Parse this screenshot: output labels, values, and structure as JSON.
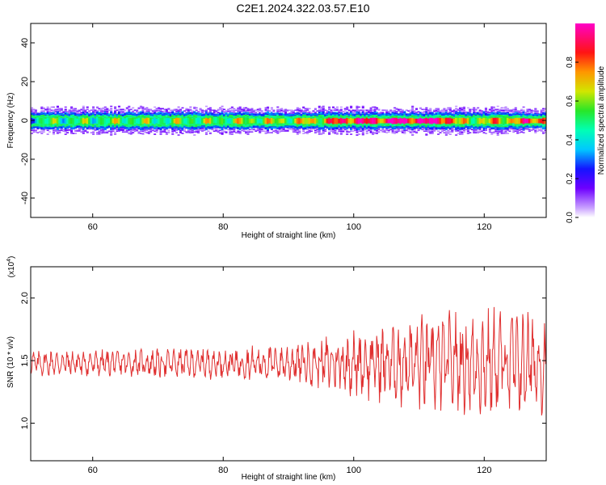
{
  "title": "C2E1.2024.322.03.57.E10",
  "chart_data": [
    {
      "type": "heatmap",
      "xlabel": "Height of straight line (km)",
      "ylabel": "Frequency (Hz)",
      "xlim": [
        50.5,
        129.5
      ],
      "ylim": [
        -50,
        50
      ],
      "x_ticks": [
        60,
        80,
        100,
        120
      ],
      "y_ticks": [
        40,
        20,
        0,
        -20,
        -40
      ],
      "x_tick_labels": [
        "60",
        "80",
        "100",
        "120"
      ],
      "y_tick_labels": [
        "40",
        "20",
        "0",
        "-20",
        "-40"
      ],
      "band_center_hz": 0,
      "band_halfwidth_hz": 4,
      "band_strength": [
        [
          50.5,
          0.45
        ],
        [
          55,
          0.5
        ],
        [
          60,
          0.5
        ],
        [
          65,
          0.55
        ],
        [
          70,
          0.5
        ],
        [
          75,
          0.55
        ],
        [
          80,
          0.55
        ],
        [
          85,
          0.6
        ],
        [
          90,
          0.6
        ],
        [
          95,
          0.7
        ],
        [
          98,
          0.85
        ],
        [
          100,
          0.9
        ],
        [
          103,
          0.85
        ],
        [
          106,
          0.95
        ],
        [
          110,
          0.95
        ],
        [
          114,
          0.95
        ],
        [
          116,
          0.6
        ],
        [
          120,
          0.65
        ],
        [
          123,
          0.7
        ],
        [
          126,
          0.8
        ],
        [
          129.5,
          0.85
        ]
      ],
      "colorbar": {
        "label": "Normalized spectral amplitude",
        "range": [
          0,
          1
        ],
        "ticks": [
          "0.0",
          "0.2",
          "0.4",
          "0.6",
          "0.8"
        ],
        "tick_values": [
          0,
          0.2,
          0.4,
          0.6,
          0.8
        ]
      },
      "grid": false
    },
    {
      "type": "line",
      "xlabel": "Height of straight line (km)",
      "ylabel": "SNR (10 * v/v)",
      "y_multiplier_label": "(x10",
      "y_multiplier_exp": "4",
      "xlim": [
        50.5,
        129.5
      ],
      "ylim": [
        0.7,
        2.25
      ],
      "x_ticks": [
        60,
        80,
        100,
        120
      ],
      "y_ticks": [
        2.0,
        1.5,
        1.0
      ],
      "x_tick_labels": [
        "60",
        "80",
        "100",
        "120"
      ],
      "y_tick_labels": [
        "2.0",
        "1.5",
        "1.0"
      ],
      "series_color": "#e03030",
      "mean_snr": 1.48,
      "amplitude_profile": [
        [
          50.5,
          0.1
        ],
        [
          60,
          0.1
        ],
        [
          70,
          0.11
        ],
        [
          80,
          0.12
        ],
        [
          90,
          0.14
        ],
        [
          95,
          0.2
        ],
        [
          100,
          0.25
        ],
        [
          105,
          0.3
        ],
        [
          110,
          0.35
        ],
        [
          115,
          0.38
        ],
        [
          120,
          0.4
        ],
        [
          125,
          0.42
        ],
        [
          129.5,
          0.4
        ]
      ],
      "grid": false
    }
  ]
}
